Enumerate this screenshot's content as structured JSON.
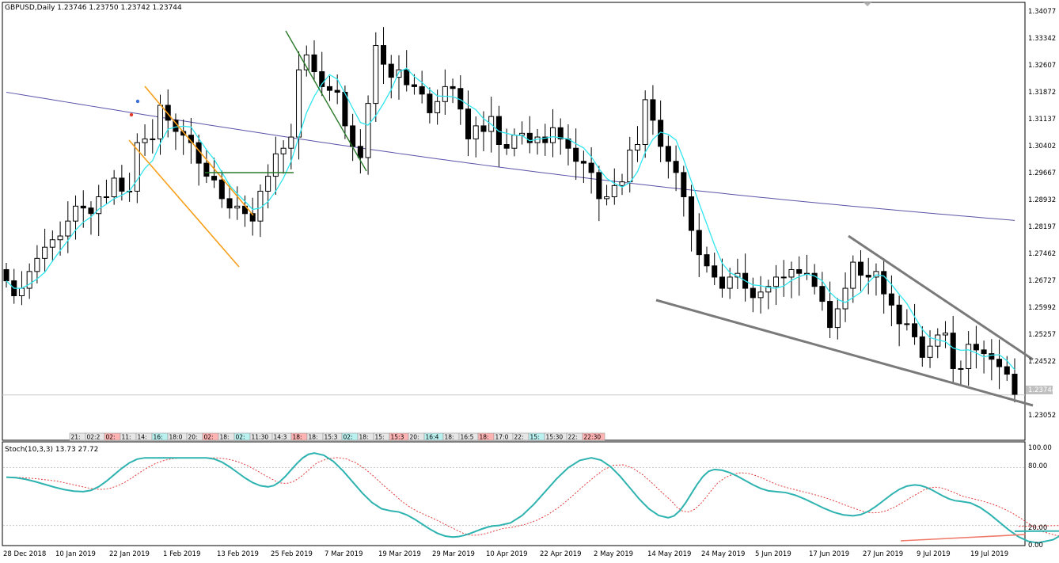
{
  "header": {
    "symbol_line": "GBPUSD,Daily  1.23746 1.23750 1.23742 1.23744"
  },
  "price_axis": {
    "labels": [
      "1.34077",
      "1.33342",
      "1.32607",
      "1.31872",
      "1.31137",
      "1.30402",
      "1.29667",
      "1.28932",
      "1.28197",
      "1.27462",
      "1.26727",
      "1.25992",
      "1.25257",
      "1.24522",
      "1.23052"
    ],
    "current_price_label": "1.23744"
  },
  "stoch": {
    "label": "Stoch(10,3,3) 13.73 27.72",
    "levels": [
      "100.00",
      "80.00",
      "20.00",
      "0.00"
    ]
  },
  "time_axis": {
    "labels": [
      "28 Dec 2018",
      "10 Jan 2019",
      "22 Jan 2019",
      "1 Feb 2019",
      "13 Feb 2019",
      "25 Feb 2019",
      "7 Mar 2019",
      "19 Mar 2019",
      "29 Mar 2019",
      "10 Apr 2019",
      "22 Apr 2019",
      "2 May 2019",
      "14 May 2019",
      "24 May 2019",
      "5 Jun 2019",
      "17 Jun 2019",
      "27 Jun 2019",
      "9 Jul 2019",
      "19 Jul 2019"
    ]
  },
  "event_strip": {
    "items": [
      "21:",
      "02:2",
      "02:",
      "11:",
      "14:",
      "16:",
      "18:0",
      "20:",
      "02:",
      "18:",
      "02:",
      "11:30",
      "14:3",
      "18:",
      "18:",
      "15:3",
      "02:",
      "18:",
      "15:",
      "15:3",
      "20:",
      "16:4",
      "18:",
      "16:5",
      "18:",
      "17:0",
      "22:",
      "15:",
      "15:30",
      "22:",
      "22:30"
    ]
  },
  "colors": {
    "bull": "#ffffff",
    "bear": "#000000",
    "ma_fast": "#2fe6f0",
    "ma_slow": "#5a52a8",
    "channel": "#f7a01b",
    "trend_green": "#2b7a2b",
    "wedge": "#7a7a7a",
    "stoch_main": "#2eb3b0",
    "stoch_signal": "#e23b3b",
    "stoch_trend": "#f07a6a"
  },
  "chart_data": {
    "type": "candlestick",
    "symbol": "GBPUSD",
    "timeframe": "Daily",
    "last_quote": {
      "open": 1.23746,
      "high": 1.2375,
      "low": 1.23742,
      "close": 1.23744
    },
    "y_range": [
      1.227,
      1.3415
    ],
    "closes": [
      1.268,
      1.264,
      1.266,
      1.2705,
      1.274,
      1.277,
      1.279,
      1.28,
      1.284,
      1.288,
      1.2875,
      1.286,
      1.2905,
      1.2905,
      1.2955,
      1.292,
      1.292,
      1.305,
      1.306,
      1.306,
      1.315,
      1.311,
      1.308,
      1.307,
      1.305,
      1.2995,
      1.296,
      1.295,
      1.29,
      1.2875,
      1.288,
      1.286,
      1.284,
      1.292,
      1.296,
      1.302,
      1.3035,
      1.3065,
      1.3245,
      1.3285,
      1.324,
      1.32,
      1.319,
      1.3185,
      1.3095,
      1.304,
      1.301,
      1.3155,
      1.331,
      1.326,
      1.3225,
      1.3245,
      1.3205,
      1.32,
      1.318,
      1.313,
      1.316,
      1.32,
      1.3195,
      1.314,
      1.306,
      1.3095,
      1.308,
      1.312,
      1.3045,
      1.3035,
      1.307,
      1.3075,
      1.305,
      1.3065,
      1.305,
      1.309,
      1.306,
      1.3035,
      1.3,
      1.2995,
      1.297,
      1.29,
      1.2905,
      1.2935,
      1.2945,
      1.303,
      1.3045,
      1.3165,
      1.311,
      1.304,
      1.3,
      1.297,
      1.2905,
      1.2815,
      1.275,
      1.272,
      1.269,
      1.266,
      1.269,
      1.27,
      1.266,
      1.2635,
      1.265,
      1.2665,
      1.269,
      1.269,
      1.271,
      1.27,
      1.27,
      1.2665,
      1.2625,
      1.2555,
      1.2605,
      1.266,
      1.273,
      1.2695,
      1.269,
      1.2705,
      1.2645,
      1.2615,
      1.2565,
      1.2565,
      1.253,
      1.2475,
      1.2505,
      1.2535,
      1.254,
      1.2445,
      1.2445,
      1.251,
      1.2495,
      1.2485,
      1.247,
      1.245,
      1.243,
      1.2376
    ],
    "ma_fast_period_note": "",
    "stochastic": {
      "params": "10,3,3",
      "main": 13.73,
      "signal": 27.72,
      "levels": [
        20,
        80
      ]
    }
  }
}
